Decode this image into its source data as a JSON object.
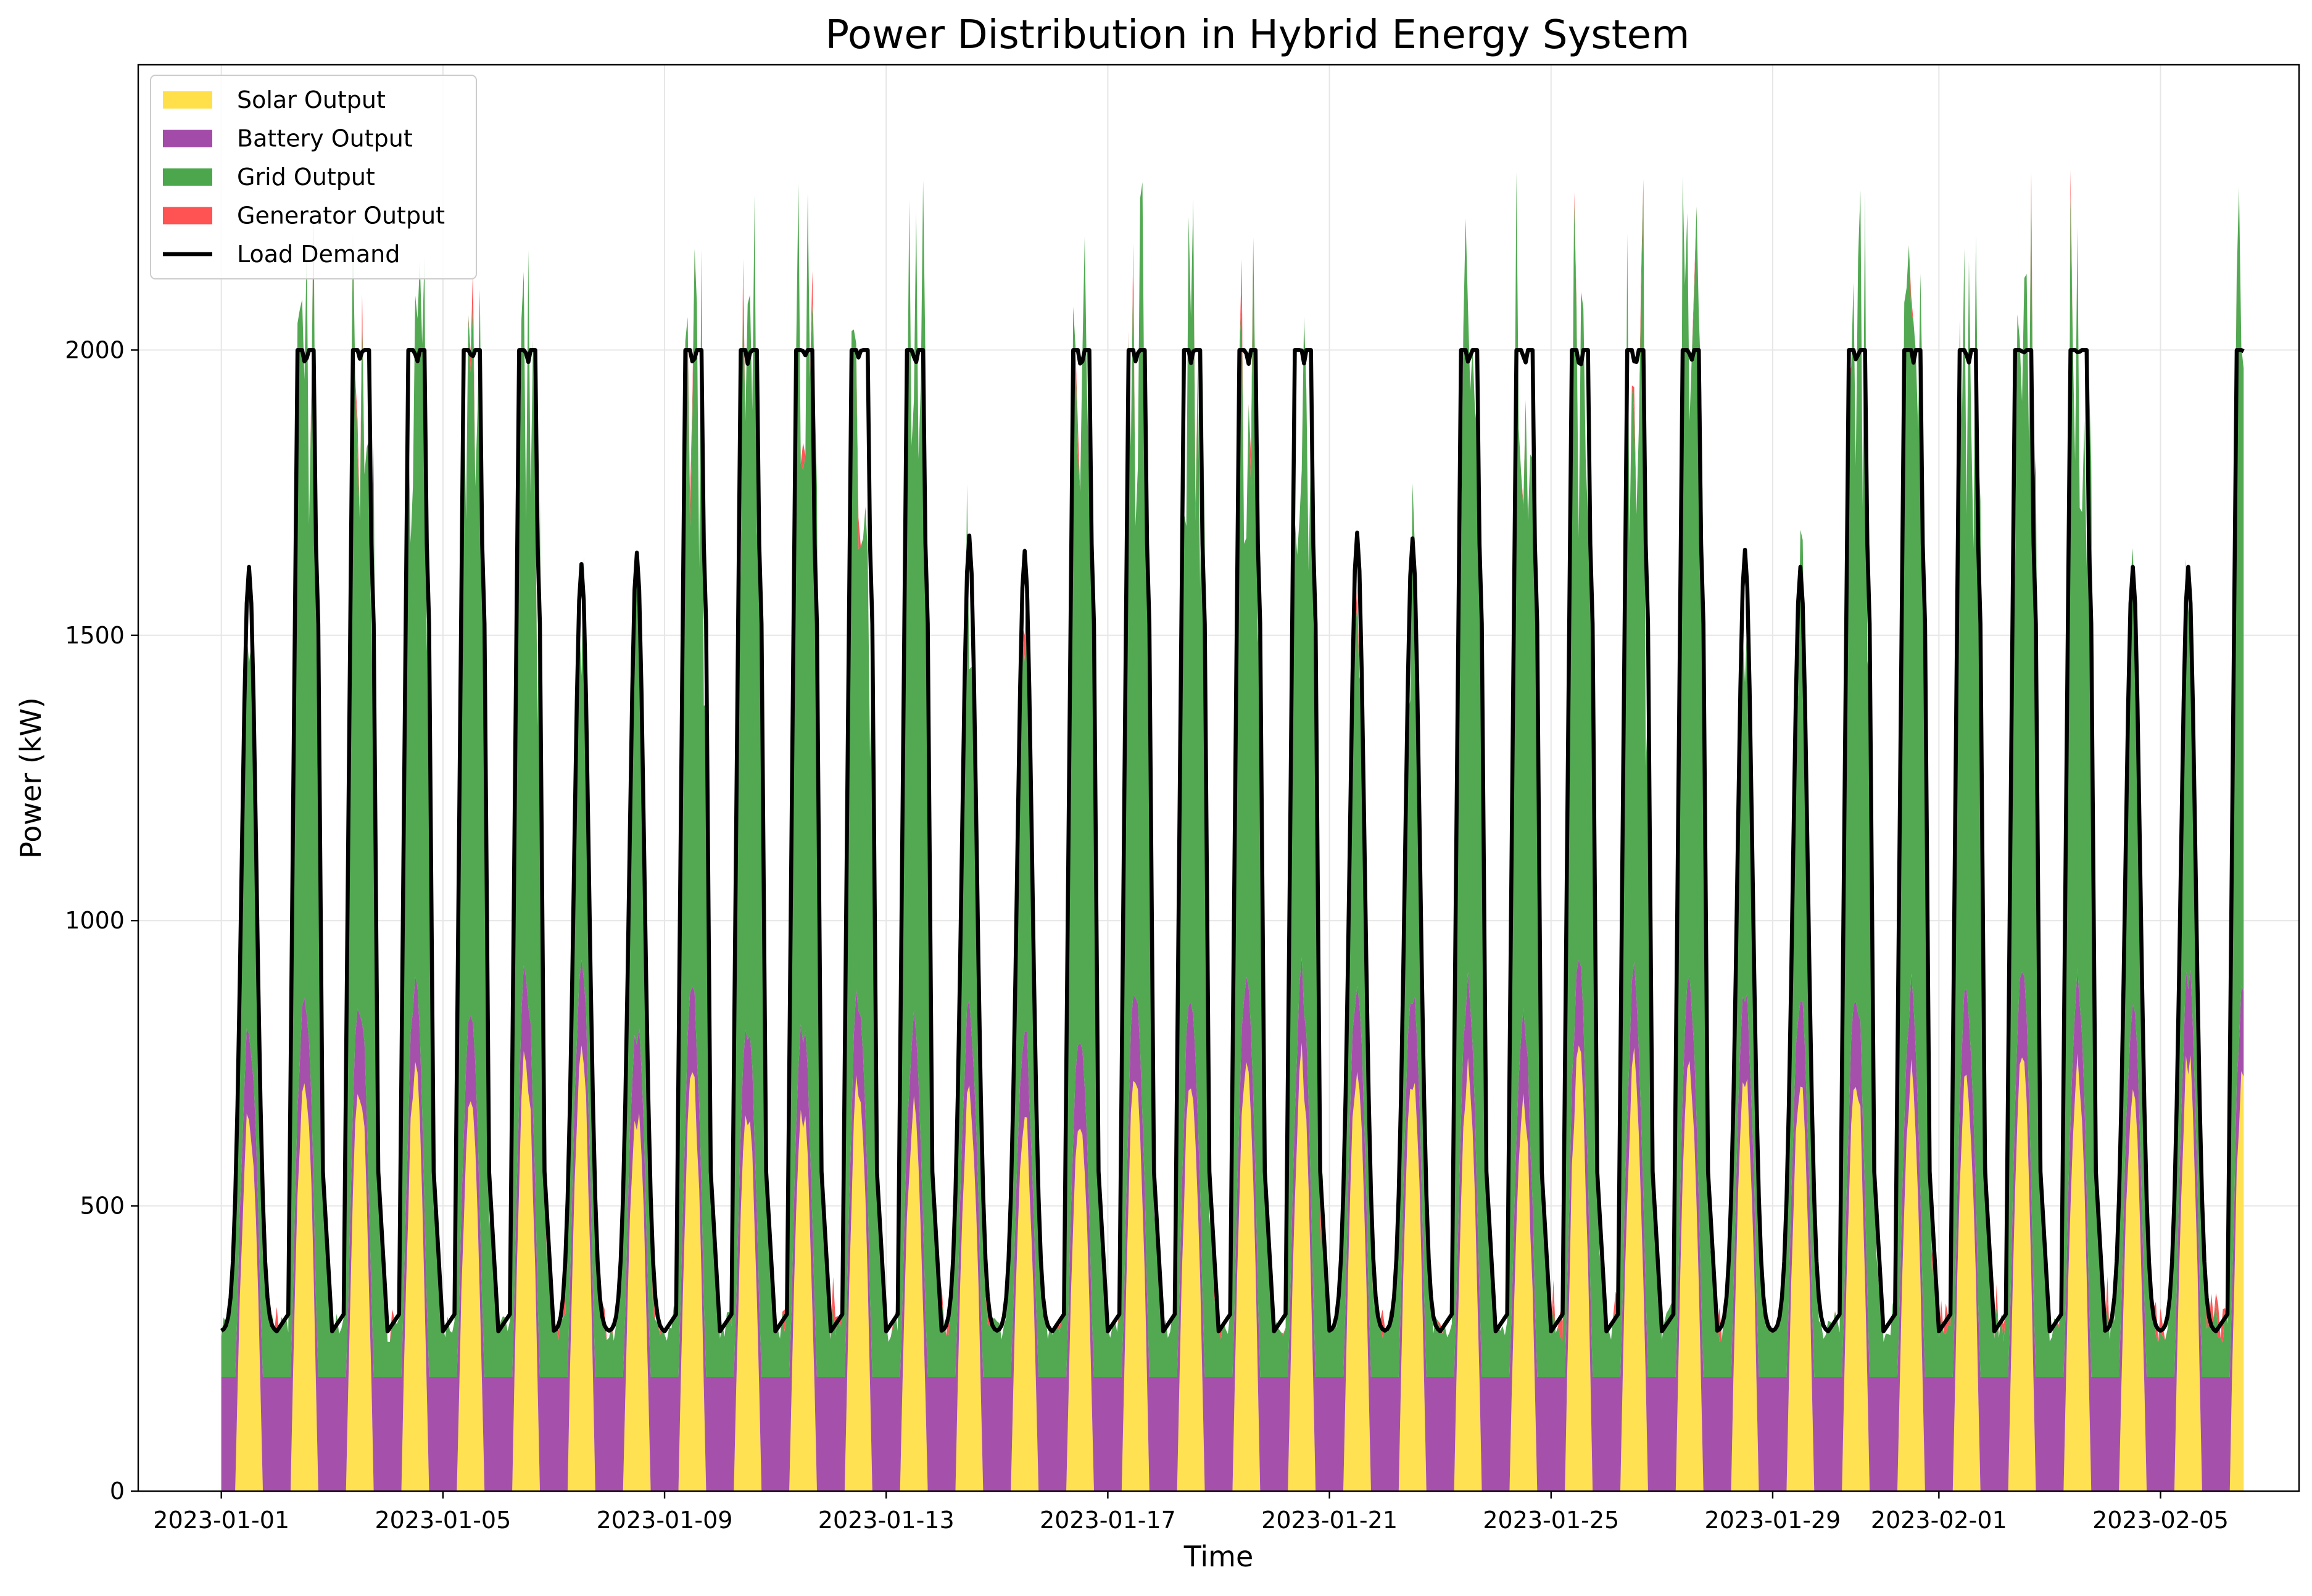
{
  "chart_data": {
    "type": "area",
    "title": "Power Distribution in Hybrid Energy System",
    "xlabel": "Time",
    "ylabel": "Power (kW)",
    "x_range": [
      "2022-12-30T12:00",
      "2023-02-07T12:00"
    ],
    "ylim": [
      0,
      2500
    ],
    "yticks": [
      0,
      500,
      1000,
      1500,
      2000
    ],
    "xticks": [
      "2023-01-01",
      "2023-01-05",
      "2023-01-09",
      "2023-01-13",
      "2023-01-17",
      "2023-01-21",
      "2023-01-25",
      "2023-01-29",
      "2023-02-01",
      "2023-02-05"
    ],
    "grid": true,
    "legend_position": "top-left",
    "stacking": "stacked areas: Solar, Battery, Grid, Generator; Load Demand drawn as a line",
    "data_start": "2023-01-01T00:00",
    "data_end": "2023-02-06T12:00",
    "sampling": "hourly",
    "series": [
      {
        "name": "Solar Output",
        "kind": "area",
        "color": "#FFE04B",
        "shape": "daily peak between 06:00 and 18:00",
        "daily_peaks": [
          690,
          770,
          760,
          760,
          710,
          800,
          810,
          700,
          760,
          690,
          700,
          760,
          700,
          740,
          680,
          690,
          770,
          760,
          790,
          790,
          760,
          770,
          760,
          710,
          810,
          780,
          790,
          780,
          760,
          780,
          760,
          770,
          790,
          780,
          720,
          800,
          800
        ]
      },
      {
        "name": "Battery Output",
        "kind": "area",
        "color": "#A24BA8",
        "shape": "200 kW at night; about 150 kW while solar runs",
        "night_level": 200,
        "day_level": 150
      },
      {
        "name": "Grid Output",
        "kind": "area",
        "color": "#4CA64C",
        "shape": "fills the remainder up to the top of the stack"
      },
      {
        "name": "Generator Output",
        "kind": "area",
        "color": "#FF5252",
        "shape": "small occasional contributions of 0–60 kW"
      },
      {
        "name": "Load Demand",
        "kind": "line",
        "color": "#000000",
        "shape": "weekday pattern reaching a 2000 kW cap; weekend days peak lower",
        "night_min": 280,
        "evening_trough": 560,
        "cap": 2000,
        "weekend_dates": [
          "2023-01-01",
          "2023-01-07",
          "2023-01-08",
          "2023-01-14",
          "2023-01-15",
          "2023-01-21",
          "2023-01-22",
          "2023-01-28",
          "2023-01-29",
          "2023-02-04",
          "2023-02-05"
        ],
        "weekend_peaks": [
          1620,
          1625,
          1645,
          1675,
          1648,
          1680,
          1670,
          1650,
          1620,
          1620,
          1620
        ]
      }
    ]
  }
}
